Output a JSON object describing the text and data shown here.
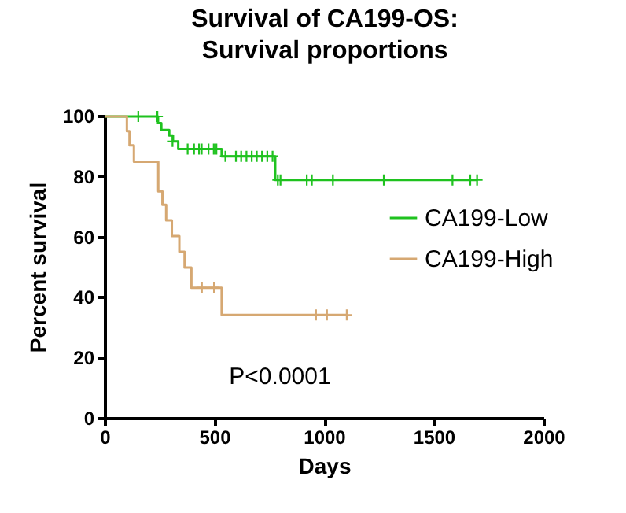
{
  "chart_data": {
    "type": "step",
    "title": "Survival of CA199-OS:Survival proportions",
    "xlabel": "Days",
    "ylabel": "Percent survival",
    "xlim": [
      0,
      2000
    ],
    "xticks": [
      0,
      500,
      1000,
      1500,
      2000
    ],
    "ylim": [
      0,
      100
    ],
    "yticks": [
      0,
      20,
      40,
      60,
      80,
      100
    ],
    "grid": false,
    "legend": "right",
    "annotations": [
      "P<0.0001"
    ],
    "series": [
      {
        "name": "CA199-Low",
        "color": "#1fc21f",
        "x": [
          0,
          240,
          255,
          291,
          308,
          332,
          530,
          774,
          1694
        ],
        "values": [
          100,
          97.8,
          95.5,
          93.7,
          91.7,
          89.2,
          86.8,
          79,
          79
        ]
      },
      {
        "name": "CA199-High",
        "color": "#d6a872",
        "x": [
          0,
          98,
          110,
          130,
          241,
          260,
          277,
          303,
          337,
          361,
          392,
          530,
          1100
        ],
        "values": [
          100,
          95.1,
          90.4,
          85,
          75.2,
          70.8,
          65.6,
          60.4,
          55.2,
          50,
          43.3,
          34.3,
          34.3
        ]
      },
      {
        "type": "scatter",
        "marker": "cross",
        "color": "#1fc21f",
        "x": [
          150,
          237,
          306,
          375,
          404,
          427,
          439,
          470,
          494,
          506,
          547,
          595,
          619,
          643,
          667,
          690,
          714,
          738,
          762,
          786,
          798,
          918,
          941,
          1037,
          1269,
          1582,
          1663,
          1694
        ],
        "values": [
          100,
          100,
          91.7,
          89.2,
          89.2,
          89.2,
          89.2,
          89.2,
          89.2,
          89.2,
          86.8,
          86.8,
          86.8,
          86.8,
          86.8,
          86.8,
          86.8,
          86.8,
          86.8,
          79,
          79,
          79,
          79,
          79,
          79,
          79,
          79,
          79
        ]
      },
      {
        "type": "scatter",
        "marker": "cross",
        "color": "#d6a872",
        "x": [
          440,
          495,
          960,
          1010,
          1100
        ],
        "values": [
          43.3,
          43.3,
          34.3,
          34.3,
          34.3
        ]
      }
    ]
  }
}
